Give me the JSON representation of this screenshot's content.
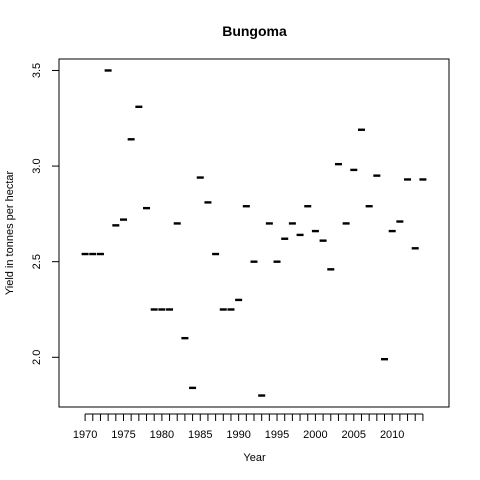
{
  "chart_data": {
    "type": "scatter",
    "marker": "short-dash",
    "title": "Bungoma",
    "xlabel": "Year",
    "ylabel": "Yield in tonnes per hectar",
    "xlim": [
      1966.6,
      2017.4
    ],
    "ylim": [
      1.74,
      3.56
    ],
    "x_ticks": [
      1970,
      1975,
      1980,
      1985,
      1990,
      1995,
      2000,
      2005,
      2010
    ],
    "x_minor_ticks_every": 1,
    "x_minor_tick_range": [
      1970,
      2014
    ],
    "y_ticks": [
      "2.0",
      "2.5",
      "3.0",
      "3.5"
    ],
    "grid": false,
    "colors": {
      "marks": "#000000",
      "axes": "#000000",
      "background": "#ffffff"
    },
    "points": [
      {
        "x": 1970,
        "y": 2.54
      },
      {
        "x": 1971,
        "y": 2.54
      },
      {
        "x": 1972,
        "y": 2.54
      },
      {
        "x": 1973,
        "y": 3.5
      },
      {
        "x": 1974,
        "y": 2.69
      },
      {
        "x": 1975,
        "y": 2.72
      },
      {
        "x": 1976,
        "y": 3.14
      },
      {
        "x": 1977,
        "y": 3.31
      },
      {
        "x": 1978,
        "y": 2.78
      },
      {
        "x": 1979,
        "y": 2.25
      },
      {
        "x": 1980,
        "y": 2.25
      },
      {
        "x": 1981,
        "y": 2.25
      },
      {
        "x": 1982,
        "y": 2.7
      },
      {
        "x": 1983,
        "y": 2.1
      },
      {
        "x": 1984,
        "y": 1.84
      },
      {
        "x": 1985,
        "y": 2.94
      },
      {
        "x": 1986,
        "y": 2.81
      },
      {
        "x": 1987,
        "y": 2.54
      },
      {
        "x": 1988,
        "y": 2.25
      },
      {
        "x": 1989,
        "y": 2.25
      },
      {
        "x": 1990,
        "y": 2.3
      },
      {
        "x": 1991,
        "y": 2.79
      },
      {
        "x": 1992,
        "y": 2.5
      },
      {
        "x": 1993,
        "y": 1.8
      },
      {
        "x": 1994,
        "y": 2.7
      },
      {
        "x": 1995,
        "y": 2.5
      },
      {
        "x": 1996,
        "y": 2.62
      },
      {
        "x": 1997,
        "y": 2.7
      },
      {
        "x": 1998,
        "y": 2.64
      },
      {
        "x": 1999,
        "y": 2.79
      },
      {
        "x": 2000,
        "y": 2.66
      },
      {
        "x": 2001,
        "y": 2.61
      },
      {
        "x": 2002,
        "y": 2.46
      },
      {
        "x": 2003,
        "y": 3.01
      },
      {
        "x": 2004,
        "y": 2.7
      },
      {
        "x": 2005,
        "y": 2.98
      },
      {
        "x": 2006,
        "y": 3.19
      },
      {
        "x": 2007,
        "y": 2.79
      },
      {
        "x": 2008,
        "y": 2.95
      },
      {
        "x": 2009,
        "y": 1.99
      },
      {
        "x": 2010,
        "y": 2.66
      },
      {
        "x": 2011,
        "y": 2.71
      },
      {
        "x": 2012,
        "y": 2.93
      },
      {
        "x": 2013,
        "y": 2.57
      },
      {
        "x": 2014,
        "y": 2.93
      }
    ]
  }
}
